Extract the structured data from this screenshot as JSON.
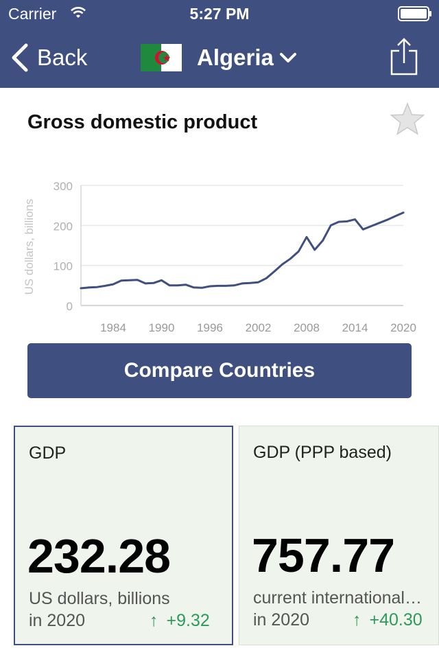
{
  "status_bar": {
    "carrier": "Carrier",
    "time": "5:27 PM"
  },
  "nav": {
    "back_label": "Back",
    "country": "Algeria"
  },
  "indicator": {
    "title": "Gross domestic product"
  },
  "chart_data": {
    "type": "line",
    "ylabel": "US dollars, billions",
    "x_ticks": [
      "1984",
      "1990",
      "1996",
      "2002",
      "2008",
      "2014",
      "2020"
    ],
    "y_ticks": [
      0,
      100,
      200,
      300
    ],
    "xlim": [
      1980,
      2020
    ],
    "ylim": [
      0,
      300
    ],
    "grid": true,
    "series": [
      {
        "color": "#3e4f80",
        "x": [
          1980,
          1981,
          1982,
          1983,
          1984,
          1985,
          1986,
          1987,
          1988,
          1989,
          1990,
          1991,
          1992,
          1993,
          1994,
          1995,
          1996,
          1997,
          1998,
          1999,
          2000,
          2001,
          2002,
          2003,
          2004,
          2005,
          2006,
          2007,
          2008,
          2009,
          2010,
          2011,
          2012,
          2013,
          2014,
          2015,
          2016,
          2017,
          2018,
          2019,
          2020
        ],
        "values": [
          43,
          45,
          46,
          49,
          53,
          62,
          63,
          64,
          55,
          56,
          63,
          50,
          50,
          52,
          45,
          44,
          48,
          49,
          49,
          50,
          55,
          56,
          58,
          68,
          85,
          103,
          117,
          135,
          171,
          139,
          162,
          200,
          209,
          210,
          215,
          190,
          198,
          206,
          214,
          223,
          232
        ]
      }
    ]
  },
  "compare_button": "Compare Countries",
  "cards": [
    {
      "label": "GDP",
      "value": "232.28",
      "unit": "US dollars, billions",
      "year": "in 2020",
      "change": "+9.32"
    },
    {
      "label": "GDP (PPP based)",
      "value": "757.77",
      "unit": "current international…",
      "year": "in 2020",
      "change": "+40.30"
    }
  ],
  "colors": {
    "brand": "#3e4f80",
    "positive": "#2d9a5c",
    "card_bg": "#eff5ec"
  },
  "icons": {
    "back": "chevron-left-icon",
    "dropdown": "chevron-down-icon",
    "share": "share-icon",
    "favorite": "star-icon",
    "arrow": "up-arrow-icon"
  }
}
